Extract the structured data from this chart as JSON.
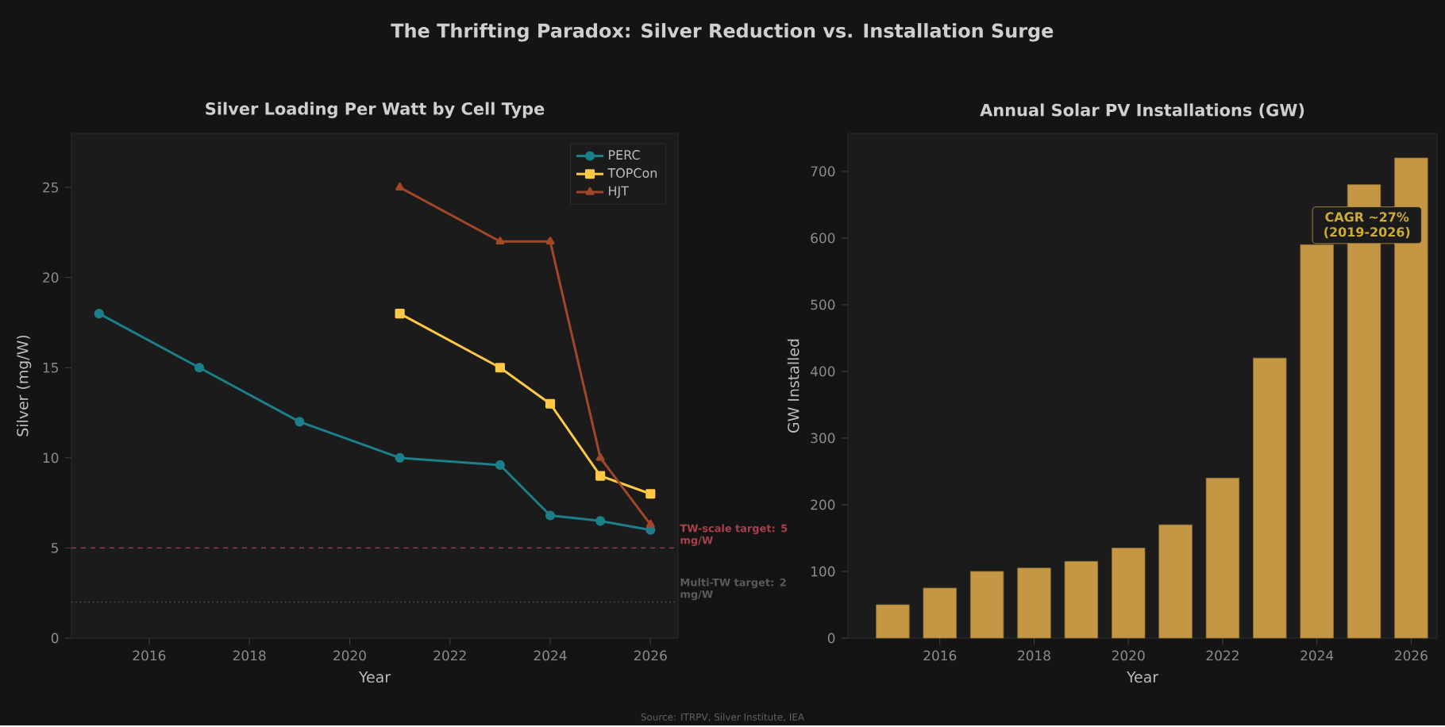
{
  "chart_data": [
    {
      "type": "line",
      "title": "Silver Loading Per Watt by Cell Type",
      "xlabel": "Year",
      "ylabel": "Silver (mg/W)",
      "xlim": [
        2014.45,
        2026.55
      ],
      "ylim": [
        0,
        28
      ],
      "xticks": [
        2016,
        2018,
        2020,
        2022,
        2024,
        2026
      ],
      "yticks": [
        0,
        5,
        10,
        15,
        20,
        25
      ],
      "legend": "top right",
      "annotations": [
        "The Thrifting Paradox: Silver Reduction vs. Installation Surge"
      ],
      "ref_lines": [
        {
          "axis": "y",
          "value": 5,
          "label": "TW-scale target: 5 mg/W",
          "color": "#a8404f",
          "line_style": "dashed"
        },
        {
          "axis": "y",
          "value": 2,
          "label": "Multi-TW target: 2 mg/W",
          "color": "#5a5a5a",
          "line_style": "dotted"
        }
      ],
      "series": [
        {
          "name": "PERC",
          "color": "#1b7f8c",
          "marker": "circle",
          "x": [
            2015,
            2017,
            2019,
            2021,
            2023,
            2024,
            2025,
            2026
          ],
          "values": [
            18,
            15,
            12,
            10,
            9.6,
            6.8,
            6.5,
            6.0
          ]
        },
        {
          "name": "TOPCon",
          "color": "#ffc845",
          "marker": "square",
          "x": [
            2021,
            2023,
            2024,
            2025,
            2026
          ],
          "values": [
            18,
            15,
            13,
            9,
            8
          ]
        },
        {
          "name": "HJT",
          "color": "#a3472a",
          "marker": "triangle",
          "x": [
            2021,
            2023,
            2024,
            2025,
            2026
          ],
          "values": [
            25,
            22,
            22,
            10,
            6.3
          ]
        }
      ]
    },
    {
      "type": "bar",
      "title": "Annual Solar PV Installations (GW)",
      "xlabel": "Year",
      "ylabel": "GW Installed",
      "xlim": [
        2014.05,
        2026.55
      ],
      "ylim": [
        0,
        757
      ],
      "xticks": [
        2016,
        2018,
        2020,
        2022,
        2024,
        2026
      ],
      "yticks": [
        0,
        100,
        200,
        300,
        400,
        500,
        600,
        700
      ],
      "annotations": [
        "Source: ITRPV, Silver Institute, IEA",
        "CAGR ~27% (2019-2026)"
      ],
      "x": [
        2015,
        2016,
        2017,
        2018,
        2019,
        2020,
        2021,
        2022,
        2023,
        2024,
        2025,
        2026
      ],
      "values": [
        50,
        75,
        100,
        105,
        115,
        135,
        170,
        240,
        420,
        590,
        680,
        720
      ],
      "color": "#c39744"
    }
  ]
}
